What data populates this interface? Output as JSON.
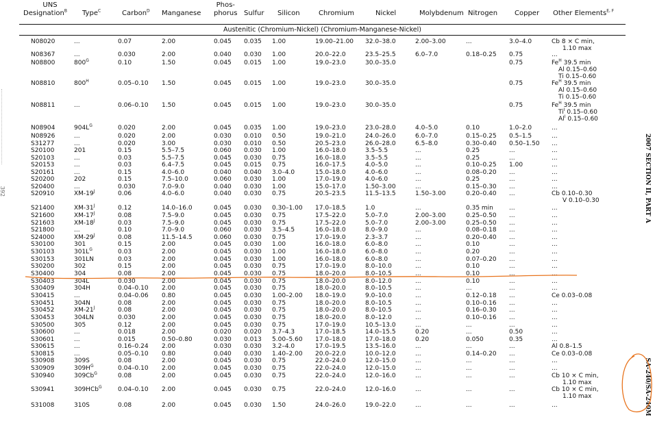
{
  "header": {
    "uns": [
      "UNS",
      "Designation"
    ],
    "uns_sup": "B",
    "type": "Type",
    "type_sup": "C",
    "carbon": "Carbon",
    "carbon_sup": "D",
    "manganese": "Manganese",
    "phos": [
      "Phos-",
      "phorus"
    ],
    "sulfur": "Sulfur",
    "silicon": "Silicon",
    "chromium": "Chromium",
    "nickel": "Nickel",
    "molybdenum": "Molybdenum",
    "nitrogen": "Nitrogen",
    "copper": "Copper",
    "other": "Other Elements",
    "other_sup": "E, F"
  },
  "section_title": "Austenitic (Chromium-Nickel) (Chromium-Manganese-Nickel)",
  "side_text": "2007 SECTION II, PART A",
  "side_code": "SA-240/SA-240M",
  "page_number": "392",
  "rows": [
    {
      "uns": "N08020",
      "type": "...",
      "ts": "",
      "c": "0.07",
      "mn": "2.00",
      "p": "0.045",
      "s": "0.035",
      "si": "1.00",
      "cr": "19.00–21.00",
      "ni": "32.0–38.0",
      "mo": "2.00–3.00",
      "n": "...",
      "cu": "3.0–4.0",
      "other": [
        "Cb 8 × C min,",
        "1.10 max"
      ]
    },
    {
      "uns": "N08367",
      "type": "...",
      "ts": "",
      "c": "0.030",
      "mn": "2.00",
      "p": "0.040",
      "s": "0.030",
      "si": "1.00",
      "cr": "20.0–22.0",
      "ni": "23.5–25.5",
      "mo": "6.0–7.0",
      "n": "0.18–0.25",
      "cu": "0.75",
      "other": [
        "..."
      ]
    },
    {
      "uns": "N08800",
      "type": "800",
      "ts": "G",
      "c": "0.10",
      "mn": "1.50",
      "p": "0.045",
      "s": "0.015",
      "si": "1.00",
      "cr": "19.0–23.0",
      "ni": "30.0–35.0",
      "mo": "",
      "n": "",
      "cu": "0.75",
      "other": [
        "Fe|H| 39.5 min",
        "Al 0.15–0.60",
        "Ti 0.15–0.60"
      ]
    },
    {
      "uns": "N08810",
      "type": "800",
      "ts": "H",
      "c": "0.05–0.10",
      "mn": "1.50",
      "p": "0.045",
      "s": "0.015",
      "si": "1.00",
      "cr": "19.0–23.0",
      "ni": "30.0–35.0",
      "mo": "",
      "n": "",
      "cu": "0.75",
      "other": [
        "Fe|H| 39.5 min",
        "Al 0.15–0.60",
        "Ti 0.15–0.60"
      ]
    },
    {
      "uns": "N08811",
      "type": "...",
      "ts": "",
      "c": "0.06–0.10",
      "mn": "1.50",
      "p": "0.045",
      "s": "0.015",
      "si": "1.00",
      "cr": "19.0–23.0",
      "ni": "30.0–35.0",
      "mo": "",
      "n": "",
      "cu": "0.75",
      "other": [
        "Fe|H| 39.5 min",
        "Ti|I| 0.15–0.60",
        "Al|I| 0.15–0.60"
      ]
    },
    {
      "uns": "N08904",
      "type": "904L",
      "ts": "G",
      "c": "0.020",
      "mn": "2.00",
      "p": "0.045",
      "s": "0.035",
      "si": "1.00",
      "cr": "19.0–23.0",
      "ni": "23.0–28.0",
      "mo": "4.0–5.0",
      "n": "0.10",
      "cu": "1.0–2.0",
      "other": [
        "..."
      ]
    },
    {
      "uns": "N08926",
      "type": "...",
      "ts": "",
      "c": "0.020",
      "mn": "2.00",
      "p": "0.030",
      "s": "0.010",
      "si": "0.50",
      "cr": "19.0–21.0",
      "ni": "24.0–26.0",
      "mo": "6.0–7.0",
      "n": "0.15–0.25",
      "cu": "0.5–1.5",
      "other": [
        "..."
      ]
    },
    {
      "uns": "S31277",
      "type": "...",
      "ts": "",
      "c": "0.020",
      "mn": "3.00",
      "p": "0.030",
      "s": "0.010",
      "si": "0.50",
      "cr": "20.5–23.0",
      "ni": "26.0–28.0",
      "mo": "6.5–8.0",
      "n": "0.30–0.40",
      "cu": "0.50–1.50",
      "other": [
        "..."
      ]
    },
    {
      "uns": "S20100",
      "type": "201",
      "ts": "",
      "c": "0.15",
      "mn": "5.5–7.5",
      "p": "0.060",
      "s": "0.030",
      "si": "1.00",
      "cr": "16.0–18.0",
      "ni": "3.5–5.5",
      "mo": "...",
      "n": "0.25",
      "cu": "...",
      "other": [
        "..."
      ]
    },
    {
      "uns": "S20103",
      "type": "...",
      "ts": "",
      "c": "0.03",
      "mn": "5.5–7.5",
      "p": "0.045",
      "s": "0.030",
      "si": "0.75",
      "cr": "16.0–18.0",
      "ni": "3.5–5.5",
      "mo": "...",
      "n": "0.25",
      "cu": "...",
      "other": [
        "..."
      ]
    },
    {
      "uns": "S20153",
      "type": "...",
      "ts": "",
      "c": "0.03",
      "mn": "6.4–7.5",
      "p": "0.045",
      "s": "0.015",
      "si": "0.75",
      "cr": "16.0–17.5",
      "ni": "4.0–5.0",
      "mo": "...",
      "n": "0.10–0.25",
      "cu": "1.00",
      "other": [
        "..."
      ]
    },
    {
      "uns": "S20161",
      "type": "...",
      "ts": "",
      "c": "0.15",
      "mn": "4.0–6.0",
      "p": "0.040",
      "s": "0.040",
      "si": "3.0–4.0",
      "cr": "15.0–18.0",
      "ni": "4.0–6.0",
      "mo": "...",
      "n": "0.08–0.20",
      "cu": "...",
      "other": [
        "..."
      ]
    },
    {
      "uns": "S20200",
      "type": "202",
      "ts": "",
      "c": "0.15",
      "mn": "7.5–10.0",
      "p": "0.060",
      "s": "0.030",
      "si": "1.00",
      "cr": "17.0–19.0",
      "ni": "4.0–6.0",
      "mo": "...",
      "n": "0.25",
      "cu": "...",
      "other": [
        "..."
      ]
    },
    {
      "uns": "S20400",
      "type": "...",
      "ts": "",
      "c": "0.030",
      "mn": "7.0–9.0",
      "p": "0.040",
      "s": "0.030",
      "si": "1.00",
      "cr": "15.0–17.0",
      "ni": "1.50–3.00",
      "mo": "...",
      "n": "0.15–0.30",
      "cu": "...",
      "other": [
        "..."
      ]
    },
    {
      "uns": "S20910",
      "type": "XM-19",
      "ts": "J",
      "c": "0.06",
      "mn": "4.0–6.0",
      "p": "0.040",
      "s": "0.030",
      "si": "0.75",
      "cr": "20.5–23.5",
      "ni": "11.5–13.5",
      "mo": "1.50–3.00",
      "n": "0.20–0.40",
      "cu": "...",
      "other": [
        "Cb 0.10–0.30",
        "V 0.10–0.30"
      ]
    },
    {
      "uns": "S21400",
      "type": "XM-31",
      "ts": "J",
      "c": "0.12",
      "mn": "14.0–16.0",
      "p": "0.045",
      "s": "0.030",
      "si": "0.30–1.00",
      "cr": "17.0–18.5",
      "ni": "1.0",
      "mo": "...",
      "n": "0.35 min",
      "cu": "...",
      "other": [
        "..."
      ]
    },
    {
      "uns": "S21600",
      "type": "XM-17",
      "ts": "J",
      "c": "0.08",
      "mn": "7.5–9.0",
      "p": "0.045",
      "s": "0.030",
      "si": "0.75",
      "cr": "17.5–22.0",
      "ni": "5.0–7.0",
      "mo": "2.00–3.00",
      "n": "0.25–0.50",
      "cu": "...",
      "other": [
        "..."
      ]
    },
    {
      "uns": "S21603",
      "type": "XM-18",
      "ts": "J",
      "c": "0.03",
      "mn": "7.5–9.0",
      "p": "0.045",
      "s": "0.030",
      "si": "0.75",
      "cr": "17.5–22.0",
      "ni": "5.0–7.0",
      "mo": "2.00–3.00",
      "n": "0.25–0.50",
      "cu": "...",
      "other": [
        "..."
      ]
    },
    {
      "uns": "S21800",
      "type": "...",
      "ts": "",
      "c": "0.10",
      "mn": "7.0–9.0",
      "p": "0.060",
      "s": "0.030",
      "si": "3.5–4.5",
      "cr": "16.0–18.0",
      "ni": "8.0–9.0",
      "mo": "...",
      "n": "0.08–0.18",
      "cu": "...",
      "other": [
        "..."
      ]
    },
    {
      "uns": "S24000",
      "type": "XM-29",
      "ts": "J",
      "c": "0.08",
      "mn": "11.5–14.5",
      "p": "0.060",
      "s": "0.030",
      "si": "0.75",
      "cr": "17.0–19.0",
      "ni": "2.3–3.7",
      "mo": "...",
      "n": "0.20–0.40",
      "cu": "...",
      "other": [
        "..."
      ]
    },
    {
      "uns": "S30100",
      "type": "301",
      "ts": "",
      "c": "0.15",
      "mn": "2.00",
      "p": "0.045",
      "s": "0.030",
      "si": "1.00",
      "cr": "16.0–18.0",
      "ni": "6.0–8.0",
      "mo": "...",
      "n": "0.10",
      "cu": "...",
      "other": [
        "..."
      ]
    },
    {
      "uns": "S30103",
      "type": "301L",
      "ts": "G",
      "c": "0.03",
      "mn": "2.00",
      "p": "0.045",
      "s": "0.030",
      "si": "1.00",
      "cr": "16.0–18.0",
      "ni": "6.0–8.0",
      "mo": "...",
      "n": "0.20",
      "cu": "...",
      "other": [
        "..."
      ]
    },
    {
      "uns": "S30153",
      "type": "301LN",
      "ts": "",
      "c": "0.03",
      "mn": "2.00",
      "p": "0.045",
      "s": "0.030",
      "si": "1.00",
      "cr": "16.0–18.0",
      "ni": "6.0–8.0",
      "mo": "...",
      "n": "0.07–0.20",
      "cu": "...",
      "other": [
        "..."
      ]
    },
    {
      "uns": "S30200",
      "type": "302",
      "ts": "",
      "c": "0.15",
      "mn": "2.00",
      "p": "0.045",
      "s": "0.030",
      "si": "0.75",
      "cr": "17.0–19.0",
      "ni": "8.0–10.0",
      "mo": "...",
      "n": "0.10",
      "cu": "...",
      "other": [
        "..."
      ]
    },
    {
      "uns": "S30400",
      "type": "304",
      "ts": "",
      "c": "0.08",
      "mn": "2.00",
      "p": "0.045",
      "s": "0.030",
      "si": "0.75",
      "cr": "18.0–20.0",
      "ni": "8.0–10.5",
      "mo": "...",
      "n": "0.10",
      "cu": "...",
      "other": [
        "..."
      ]
    },
    {
      "uns": "S30403",
      "type": "304L",
      "ts": "",
      "c": "0.030",
      "mn": "2.00",
      "p": "0.045",
      "s": "0.030",
      "si": "0.75",
      "cr": "18.0–20.0",
      "ni": "8.0–12.0",
      "mo": "...",
      "n": "0.10",
      "cu": "...",
      "other": [
        "..."
      ]
    },
    {
      "uns": "S30409",
      "type": "304H",
      "ts": "",
      "c": "0.04–0.10",
      "mn": "2.00",
      "p": "0.045",
      "s": "0.030",
      "si": "0.75",
      "cr": "18.0–20.0",
      "ni": "8.0–10.5",
      "mo": "...",
      "n": "...",
      "cu": "...",
      "other": [
        "..."
      ]
    },
    {
      "uns": "S30415",
      "type": "...",
      "ts": "",
      "c": "0.04–0.06",
      "mn": "0.80",
      "p": "0.045",
      "s": "0.030",
      "si": "1.00–2.00",
      "cr": "18.0–19.0",
      "ni": "9.0–10.0",
      "mo": "...",
      "n": "0.12–0.18",
      "cu": "...",
      "other": [
        "Ce 0.03–0.08"
      ]
    },
    {
      "uns": "S30451",
      "type": "304N",
      "ts": "",
      "c": "0.08",
      "mn": "2.00",
      "p": "0.045",
      "s": "0.030",
      "si": "0.75",
      "cr": "18.0–20.0",
      "ni": "8.0–10.5",
      "mo": "...",
      "n": "0.10–0.16",
      "cu": "...",
      "other": [
        "..."
      ]
    },
    {
      "uns": "S30452",
      "type": "XM-21",
      "ts": "J",
      "c": "0.08",
      "mn": "2.00",
      "p": "0.045",
      "s": "0.030",
      "si": "0.75",
      "cr": "18.0–20.0",
      "ni": "8.0–10.5",
      "mo": "...",
      "n": "0.16–0.30",
      "cu": "...",
      "other": [
        "..."
      ]
    },
    {
      "uns": "S30453",
      "type": "304LN",
      "ts": "",
      "c": "0.030",
      "mn": "2.00",
      "p": "0.045",
      "s": "0.030",
      "si": "0.75",
      "cr": "18.0–20.0",
      "ni": "8.0–12.0",
      "mo": "...",
      "n": "0.10–0.16",
      "cu": "...",
      "other": [
        "..."
      ]
    },
    {
      "uns": "S30500",
      "type": "305",
      "ts": "",
      "c": "0.12",
      "mn": "2.00",
      "p": "0.045",
      "s": "0.030",
      "si": "0.75",
      "cr": "17.0–19.0",
      "ni": "10.5–13.0",
      "mo": "...",
      "n": "...",
      "cu": "...",
      "other": [
        "..."
      ]
    },
    {
      "uns": "S30600",
      "type": "...",
      "ts": "",
      "c": "0.018",
      "mn": "2.00",
      "p": "0.020",
      "s": "0.020",
      "si": "3.7–4.3",
      "cr": "17.0–18.5",
      "ni": "14.0–15.5",
      "mo": "0.20",
      "n": "...",
      "cu": "0.50",
      "other": [
        "..."
      ]
    },
    {
      "uns": "S30601",
      "type": "...",
      "ts": "",
      "c": "0.015",
      "mn": "0.50–0.80",
      "p": "0.030",
      "s": "0.013",
      "si": "5.00–5.60",
      "cr": "17.0–18.0",
      "ni": "17.0–18.0",
      "mo": "0.20",
      "n": "0.050",
      "cu": "0.35",
      "other": [
        "..."
      ]
    },
    {
      "uns": "S30615",
      "type": "...",
      "ts": "",
      "c": "0.16–0.24",
      "mn": "2.00",
      "p": "0.030",
      "s": "0.030",
      "si": "3.2–4.0",
      "cr": "17.0–19.5",
      "ni": "13.5–16.0",
      "mo": "...",
      "n": "...",
      "cu": "...",
      "other": [
        "Al 0.8–1.5"
      ]
    },
    {
      "uns": "S30815",
      "type": "...",
      "ts": "",
      "c": "0.05–0.10",
      "mn": "0.80",
      "p": "0.040",
      "s": "0.030",
      "si": "1.40–2.00",
      "cr": "20.0–22.0",
      "ni": "10.0–12.0",
      "mo": "...",
      "n": "0.14–0.20",
      "cu": "...",
      "other": [
        "Ce 0.03–0.08"
      ]
    },
    {
      "uns": "S30908",
      "type": "309S",
      "ts": "",
      "c": "0.08",
      "mn": "2.00",
      "p": "0.045",
      "s": "0.030",
      "si": "0.75",
      "cr": "22.0–24.0",
      "ni": "12.0–15.0",
      "mo": "...",
      "n": "...",
      "cu": "...",
      "other": [
        "..."
      ]
    },
    {
      "uns": "S30909",
      "type": "309H",
      "ts": "G",
      "c": "0.04–0.10",
      "mn": "2.00",
      "p": "0.045",
      "s": "0.030",
      "si": "0.75",
      "cr": "22.0–24.0",
      "ni": "12.0–15.0",
      "mo": "...",
      "n": "...",
      "cu": "...",
      "other": [
        "..."
      ]
    },
    {
      "uns": "S30940",
      "type": "309Cb",
      "ts": "G",
      "c": "0.08",
      "mn": "2.00",
      "p": "0.045",
      "s": "0.030",
      "si": "0.75",
      "cr": "22.0–24.0",
      "ni": "12.0–16.0",
      "mo": "...",
      "n": "...",
      "cu": "...",
      "other": [
        "Cb 10 × C min,",
        "1.10 max"
      ]
    },
    {
      "uns": "S30941",
      "type": "309HCb",
      "ts": "G",
      "c": "0.04–0.10",
      "mn": "2.00",
      "p": "0.045",
      "s": "0.030",
      "si": "0.75",
      "cr": "22.0–24.0",
      "ni": "12.0–16.0",
      "mo": "...",
      "n": "...",
      "cu": "...",
      "other": [
        "Cb 10 × C min,",
        "1.10 max"
      ]
    },
    {
      "uns": "S31008",
      "type": "310S",
      "ts": "",
      "c": "0.08",
      "mn": "2.00",
      "p": "0.045",
      "s": "0.030",
      "si": "1.50",
      "cr": "24.0–26.0",
      "ni": "19.0–22.0",
      "mo": "...",
      "n": "...",
      "cu": "...",
      "other": [
        "..."
      ]
    }
  ]
}
